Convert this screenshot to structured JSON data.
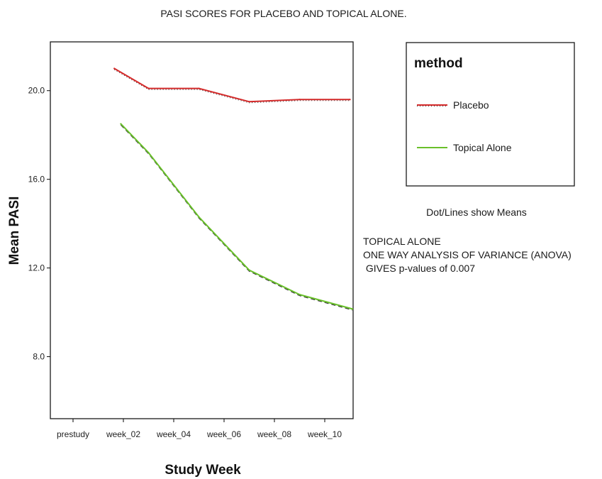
{
  "chart_data": {
    "type": "line",
    "title": "PASI SCORES FOR PLACEBO AND TOPICAL ALONE.",
    "xlabel": "Study Week",
    "ylabel": "Mean PASI",
    "categories": [
      "prestudy",
      "week_02",
      "week_04",
      "week_06",
      "week_08",
      "week_10"
    ],
    "yticks": [
      8.0,
      12.0,
      16.0,
      20.0
    ],
    "ytick_labels": [
      "8.0",
      "12.0",
      "16.0",
      "20.0"
    ],
    "ylim": [
      5.2,
      22.2
    ],
    "grid": false,
    "legend": {
      "title": "method",
      "placement": "right"
    },
    "series": [
      {
        "name": "Placebo",
        "color": "#d42a2a",
        "points": [
          [
            0.82,
            21.0
          ],
          [
            1.5,
            20.1
          ],
          [
            2.5,
            20.1
          ],
          [
            3.5,
            19.5
          ],
          [
            4.5,
            19.6
          ],
          [
            5.5,
            19.6
          ]
        ]
      },
      {
        "name": "Topical Alone",
        "color": "#69c02a",
        "points": [
          [
            0.95,
            18.5
          ],
          [
            1.5,
            17.2
          ],
          [
            2.5,
            14.3
          ],
          [
            3.5,
            11.9
          ],
          [
            4.5,
            10.8
          ],
          [
            5.55,
            10.15
          ]
        ]
      }
    ],
    "annotations": {
      "means_note": "Dot/Lines show Means",
      "lines": [
        "TOPICAL ALONE",
        "ONE WAY ANALYSIS OF VARIANCE (ANOVA)",
        " GIVES p-values of 0.007"
      ]
    }
  }
}
